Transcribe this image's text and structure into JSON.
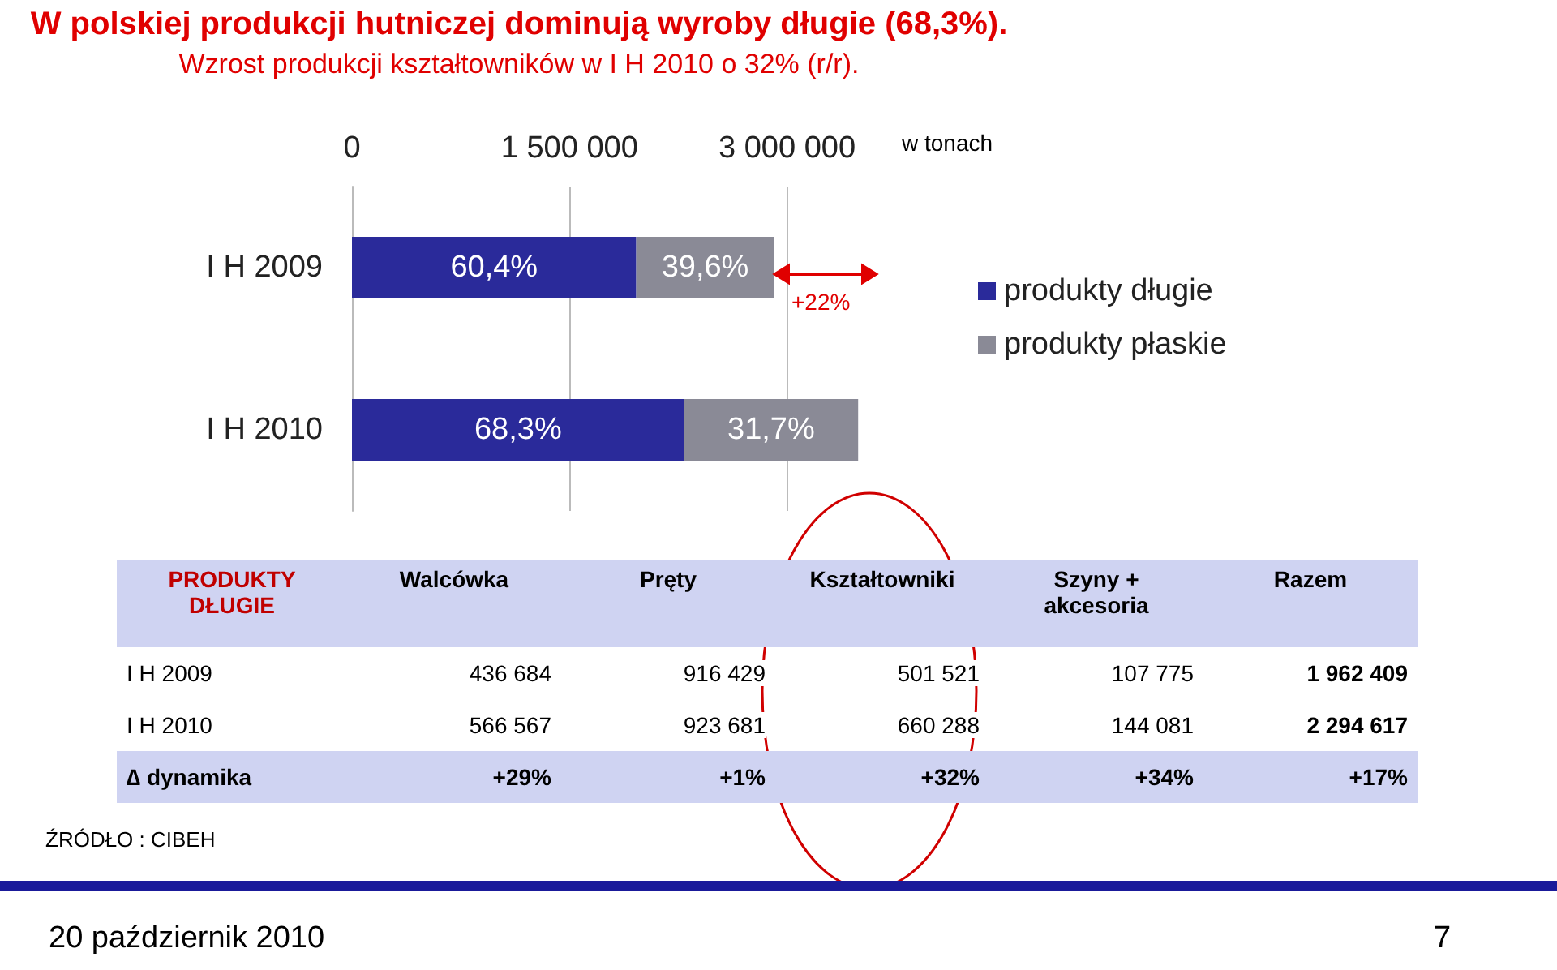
{
  "chart_data": {
    "type": "bar",
    "orientation": "horizontal",
    "stacked": true,
    "title": "W polskiej produkcji hutniczej dominują wyroby długie (68,3%).",
    "subtitle": "Wzrost produkcji kształtowników w I H 2010 o 32% (r/r).",
    "categories": [
      "I H 2009",
      "I H 2010"
    ],
    "series": [
      {
        "name": "produkty długie",
        "color": "#2a2a9a",
        "values": [
          1960000,
          2290000
        ]
      },
      {
        "name": "produkty płaskie",
        "color": "#8a8a96",
        "values": [
          950000,
          1200000
        ]
      }
    ],
    "xlim": [
      0,
      3500000
    ],
    "xticks": [
      {
        "value": 0,
        "label": "0"
      },
      {
        "value": 1500000,
        "label": "1 500 000"
      },
      {
        "value": 3000000,
        "label": "3 000 000"
      }
    ],
    "grid": "x",
    "legend": "right",
    "annotations": [
      "w tonach",
      "+22%",
      "60,4%",
      "39,6%",
      "68,3%",
      "31,7%",
      "PRODUKTY DŁUGIE",
      "Walcówka",
      "Pręty",
      "Kształtowniki",
      "Szyny + akcesoria",
      "Razem",
      "I H 2009",
      "436 684",
      "916 429",
      "501 521",
      "107 775",
      "1 962 409",
      "I H 2010",
      "566 567",
      "923 681",
      "660 288",
      "144 081",
      "2 294 617",
      "∆ dynamika",
      "+29%",
      "+1%",
      "+32%",
      "+34%",
      "+17%",
      "ŹRÓDŁO : CIBEH",
      "20 październik 2010",
      "7"
    ]
  }
}
